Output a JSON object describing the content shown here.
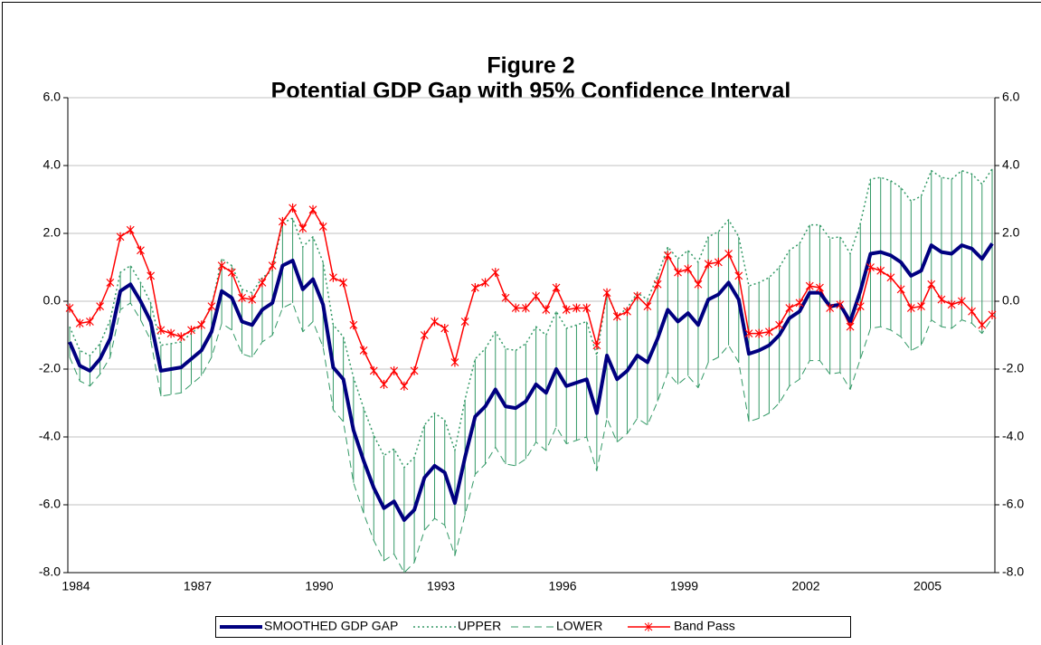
{
  "chart_data": {
    "type": "line",
    "title": "Figure 2",
    "subtitle": "Potential GDP Gap with 95% Confidence Interval",
    "categories": [
      "1984",
      null,
      null,
      null,
      null,
      null,
      null,
      null,
      null,
      null,
      null,
      null,
      "1987",
      null,
      null,
      null,
      null,
      null,
      null,
      null,
      null,
      null,
      null,
      null,
      "1990",
      null,
      null,
      null,
      null,
      null,
      null,
      null,
      null,
      null,
      null,
      null,
      "1993",
      null,
      null,
      null,
      null,
      null,
      null,
      null,
      null,
      null,
      null,
      null,
      "1996",
      null,
      null,
      null,
      null,
      null,
      null,
      null,
      null,
      null,
      null,
      null,
      "1999",
      null,
      null,
      null,
      null,
      null,
      null,
      null,
      null,
      null,
      null,
      null,
      "2002",
      null,
      null,
      null,
      null,
      null,
      null,
      null,
      null,
      null,
      null,
      null,
      "2005",
      null,
      null,
      null,
      null,
      null,
      null,
      null
    ],
    "series": [
      {
        "name": "SMOOTHED GDP GAP",
        "color": "#000080",
        "values": [
          -1.2,
          -1.9,
          -2.05,
          -1.7,
          -1.1,
          0.3,
          0.5,
          0.0,
          -0.6,
          -2.05,
          -2.0,
          -1.95,
          -1.7,
          -1.45,
          -0.9,
          0.3,
          0.1,
          -0.6,
          -0.7,
          -0.25,
          -0.05,
          1.05,
          1.2,
          0.35,
          0.65,
          -0.1,
          -1.95,
          -2.3,
          -3.8,
          -4.7,
          -5.5,
          -6.1,
          -5.9,
          -6.45,
          -6.15,
          -5.2,
          -4.85,
          -5.05,
          -5.95,
          -4.6,
          -3.4,
          -3.1,
          -2.6,
          -3.1,
          -3.15,
          -2.95,
          -2.45,
          -2.7,
          -2.0,
          -2.5,
          -2.4,
          -2.3,
          -3.3,
          -1.6,
          -2.3,
          -2.05,
          -1.6,
          -1.8,
          -1.1,
          -0.25,
          -0.6,
          -0.35,
          -0.7,
          0.05,
          0.2,
          0.55,
          0.05,
          -1.55,
          -1.45,
          -1.3,
          -1.0,
          -0.5,
          -0.3,
          0.25,
          0.25,
          -0.15,
          -0.1,
          -0.6,
          0.3,
          1.4,
          1.45,
          1.35,
          1.15,
          0.75,
          0.9,
          1.65,
          1.45,
          1.4,
          1.65,
          1.55,
          1.25,
          1.7
        ]
      },
      {
        "name": "UPPER",
        "color": "#339966",
        "values": [
          -0.75,
          -1.45,
          -1.6,
          -1.25,
          -0.55,
          0.85,
          1.05,
          0.55,
          -0.05,
          -1.3,
          -1.25,
          -1.2,
          -0.95,
          -0.7,
          -0.15,
          1.25,
          1.05,
          0.35,
          0.25,
          0.7,
          0.9,
          2.3,
          2.45,
          1.6,
          1.9,
          1.15,
          -0.7,
          -1.05,
          -2.25,
          -3.15,
          -3.95,
          -4.55,
          -4.35,
          -4.9,
          -4.6,
          -3.65,
          -3.3,
          -3.5,
          -4.4,
          -2.9,
          -1.7,
          -1.4,
          -0.9,
          -1.4,
          -1.45,
          -1.25,
          -0.75,
          -1.0,
          -0.3,
          -0.8,
          -0.7,
          -0.6,
          -1.6,
          0.25,
          -0.45,
          -0.2,
          0.25,
          0.05,
          0.75,
          1.6,
          1.25,
          1.5,
          1.15,
          1.9,
          2.05,
          2.4,
          1.9,
          0.45,
          0.55,
          0.7,
          1.0,
          1.5,
          1.7,
          2.25,
          2.25,
          1.85,
          1.9,
          1.4,
          2.3,
          3.6,
          3.65,
          3.55,
          3.35,
          2.95,
          3.1,
          3.85,
          3.65,
          3.6,
          3.85,
          3.75,
          3.45,
          3.9
        ]
      },
      {
        "name": "LOWER",
        "color": "#339966",
        "values": [
          -1.65,
          -2.35,
          -2.5,
          -2.15,
          -1.65,
          -0.25,
          -0.05,
          -0.55,
          -1.15,
          -2.8,
          -2.75,
          -2.7,
          -2.45,
          -2.2,
          -1.65,
          -0.65,
          -0.85,
          -1.55,
          -1.65,
          -1.2,
          -1.0,
          -0.2,
          -0.05,
          -0.9,
          -0.6,
          -1.35,
          -3.2,
          -3.55,
          -5.35,
          -6.25,
          -7.05,
          -7.65,
          -7.45,
          -8.0,
          -7.7,
          -6.75,
          -6.4,
          -6.6,
          -7.5,
          -6.3,
          -5.1,
          -4.8,
          -4.3,
          -4.8,
          -4.85,
          -4.65,
          -4.15,
          -4.4,
          -3.7,
          -4.2,
          -4.1,
          -4.0,
          -5.0,
          -3.45,
          -4.15,
          -3.9,
          -3.45,
          -3.65,
          -2.95,
          -2.1,
          -2.45,
          -2.2,
          -2.55,
          -1.8,
          -1.65,
          -1.3,
          -1.8,
          -3.55,
          -3.45,
          -3.3,
          -3.0,
          -2.5,
          -2.3,
          -1.75,
          -1.75,
          -2.15,
          -2.1,
          -2.6,
          -1.7,
          -0.8,
          -0.75,
          -0.85,
          -1.05,
          -1.45,
          -1.3,
          -0.55,
          -0.75,
          -0.8,
          -0.55,
          -0.65,
          -0.95,
          -0.5
        ]
      },
      {
        "name": "Band Pass",
        "color": "#ff0000",
        "values": [
          -0.2,
          -0.65,
          -0.6,
          -0.15,
          0.55,
          1.9,
          2.1,
          1.5,
          0.75,
          -0.85,
          -0.95,
          -1.05,
          -0.85,
          -0.7,
          -0.15,
          1.05,
          0.85,
          0.1,
          0.05,
          0.55,
          1.05,
          2.35,
          2.75,
          2.15,
          2.7,
          2.2,
          0.7,
          0.55,
          -0.7,
          -1.45,
          -2.05,
          -2.45,
          -2.05,
          -2.5,
          -2.05,
          -1.0,
          -0.6,
          -0.8,
          -1.8,
          -0.6,
          0.4,
          0.55,
          0.85,
          0.1,
          -0.2,
          -0.2,
          0.15,
          -0.25,
          0.4,
          -0.25,
          -0.2,
          -0.2,
          -1.3,
          0.25,
          -0.45,
          -0.3,
          0.15,
          -0.15,
          0.5,
          1.35,
          0.85,
          0.95,
          0.5,
          1.1,
          1.15,
          1.4,
          0.75,
          -0.95,
          -0.95,
          -0.9,
          -0.7,
          -0.2,
          -0.05,
          0.45,
          0.4,
          -0.2,
          -0.1,
          -0.75,
          -0.15,
          1.0,
          0.9,
          0.7,
          0.35,
          -0.2,
          -0.15,
          0.5,
          0.05,
          -0.1,
          0.0,
          -0.3,
          -0.7,
          -0.4
        ]
      }
    ],
    "ylim": [
      -8,
      6
    ],
    "yticks": [
      {
        "value": -8,
        "label": "-8.0"
      },
      {
        "value": -6,
        "label": "-6.0"
      },
      {
        "value": -4,
        "label": "-4.0"
      },
      {
        "value": -2,
        "label": "-2.0"
      },
      {
        "value": 0,
        "label": "0.0"
      },
      {
        "value": 2,
        "label": "2.0"
      },
      {
        "value": 4,
        "label": "4.0"
      },
      {
        "value": 6,
        "label": "6.0"
      }
    ],
    "y2lim": [
      -8,
      6
    ],
    "y2ticks": [
      {
        "value": -8,
        "label": "-8.0"
      },
      {
        "value": -6,
        "label": "-6.0"
      },
      {
        "value": -4,
        "label": "-4.0"
      },
      {
        "value": -2,
        "label": "-2.0"
      },
      {
        "value": 0,
        "label": "0.0"
      },
      {
        "value": 2,
        "label": "2.0"
      },
      {
        "value": 4,
        "label": "4.0"
      },
      {
        "value": 6,
        "label": "6.0"
      }
    ],
    "grid": true,
    "legend": "bottom"
  }
}
